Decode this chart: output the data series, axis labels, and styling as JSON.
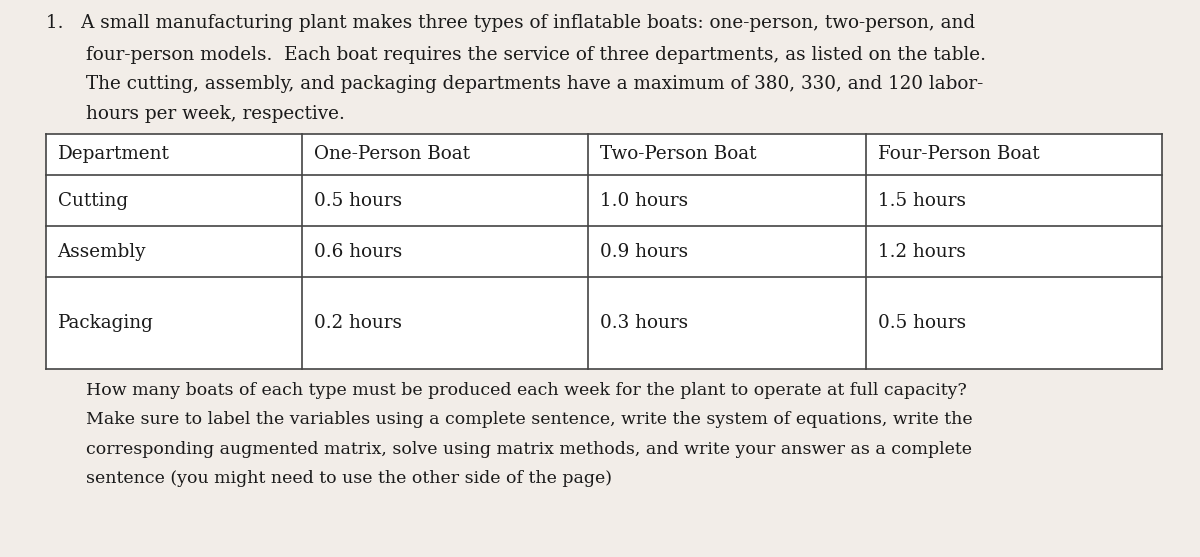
{
  "background_color": "#f2ede8",
  "top_line": "1.   A small manufacturing plant makes three types of inflatable boats: one-person, two-person, and",
  "paragraph_lines": [
    "four-person models.  Each boat requires the service of three departments, as listed on the table.",
    "The cutting, assembly, and packaging departments have a maximum of 380, 330, and 120 labor-",
    "hours per week, respective."
  ],
  "table_headers": [
    "Department",
    "One-Person Boat",
    "Two-Person Boat",
    "Four-Person Boat"
  ],
  "table_rows": [
    [
      "Cutting",
      "0.5 hours",
      "1.0 hours",
      "1.5 hours"
    ],
    [
      "Assembly",
      "0.6 hours",
      "0.9 hours",
      "1.2 hours"
    ],
    [
      "Packaging",
      "0.2 hours",
      "0.3 hours",
      "0.5 hours"
    ]
  ],
  "footer_lines": [
    "How many boats of each type must be produced each week for the plant to operate at full capacity?",
    "Make sure to label the variables using a complete sentence, write the system of equations, write the",
    "corresponding augmented matrix, solve using matrix methods, and write your answer as a complete",
    "sentence (you might need to use the other side of the page)"
  ],
  "font_size_body": 13.2,
  "font_size_table": 13.2,
  "font_size_footer": 12.5,
  "text_color": "#1a1a1a",
  "table_border_color": "#444444",
  "table_bg": "#ffffff"
}
